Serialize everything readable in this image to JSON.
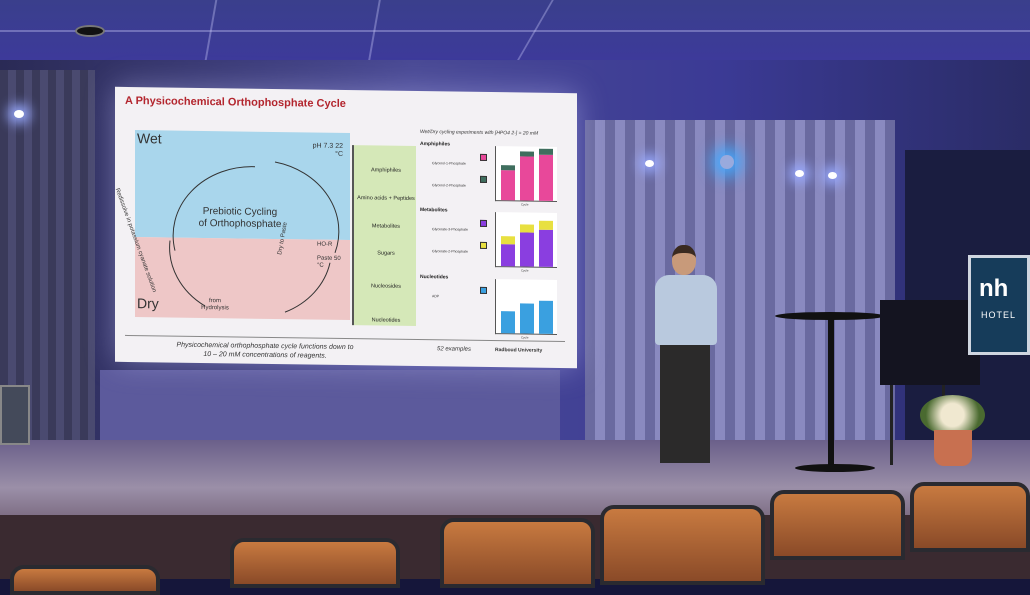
{
  "slide": {
    "title": "A Physicochemical Orthophosphate Cycle",
    "wet_label": "Wet",
    "dry_label": "Dry",
    "conditions_wet": "pH 7.3 22 °C",
    "conditions_dry": "Paste 50 °C",
    "dry_to_paste": "Dry to Paste",
    "hor": "HO-R",
    "center_text_1": "Prebiotic Cycling",
    "center_text_2": "of Orthophosphate",
    "redissolve": "Redissolve in potassium cyanate solution",
    "from_hydrolysis": "from Hydrolysis",
    "green_items": [
      "Amphiphiles",
      "Amino acids + Peptides",
      "Metabolites",
      "Sugars",
      "Nucleosides",
      "Nucleotides"
    ],
    "charts_heading": "Wet/Dry cycling experiments with [HPO4 2-] = 20 mM",
    "charts": [
      {
        "title": "Amphiphiles",
        "compounds": [
          "Glycerol-1-Phosphate",
          "Glycerol-2-Phosphate"
        ],
        "colors": [
          "#e8489a",
          "#3f6e5e"
        ],
        "xlabel": "Cycle",
        "values": [
          [
            55,
            8
          ],
          [
            80,
            10
          ],
          [
            84,
            10
          ]
        ]
      },
      {
        "title": "Metabolites",
        "compounds": [
          "Glycerate-3-Phosphate",
          "Glycerate-2-Phosphate"
        ],
        "colors": [
          "#8a3ee0",
          "#e8e040"
        ],
        "xlabel": "Cycle",
        "values": [
          [
            40,
            15
          ],
          [
            62,
            15
          ],
          [
            68,
            15
          ]
        ]
      },
      {
        "title": "Nucleotides",
        "compounds": [
          "ADP"
        ],
        "colors": [
          "#3aa0e0"
        ],
        "xlabel": "Cycle",
        "values": [
          [
            40
          ],
          [
            55
          ],
          [
            60
          ]
        ]
      }
    ],
    "footer_1": "Physicochemical orthophosphate cycle functions down to",
    "footer_2": "10 – 20 mM concentrations of reagents.",
    "examples": "52 examples",
    "university": "Radboud University"
  },
  "sign": {
    "logo": "nh",
    "subtitle": "HOTEL"
  }
}
